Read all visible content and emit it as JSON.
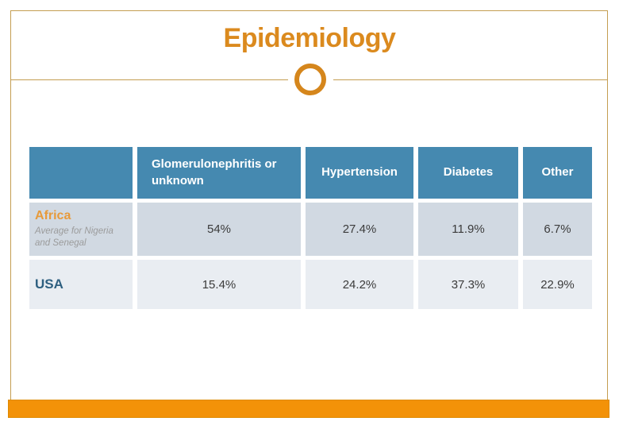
{
  "slide": {
    "title": "Epidemiology"
  },
  "table": {
    "columns": [
      "",
      "Glomerulonephritis or unknown",
      "Hypertension",
      "Diabetes",
      "Other"
    ],
    "rows": [
      {
        "label": "Africa",
        "sublabel": "Average for Nigeria and Senegal",
        "values": [
          "54%",
          "27.4%",
          "11.9%",
          "6.7%"
        ]
      },
      {
        "label": "USA",
        "sublabel": "",
        "values": [
          "15.4%",
          "24.2%",
          "37.3%",
          "22.9%"
        ]
      }
    ]
  },
  "colors": {
    "title_orange": "#DB8A1E",
    "ornament_orange": "#D5861C",
    "frame_gold": "#C49D51",
    "footer_orange": "#F39208",
    "header_blue": "#4589B0",
    "row_africa_bg": "#D1D9E2",
    "row_usa_bg": "#E9EDF2",
    "africa_label_orange": "#E79A3A",
    "usa_label_blue": "#2E5F80",
    "sublabel_gray": "#9B9B9B",
    "value_text": "#3B3B3B"
  }
}
